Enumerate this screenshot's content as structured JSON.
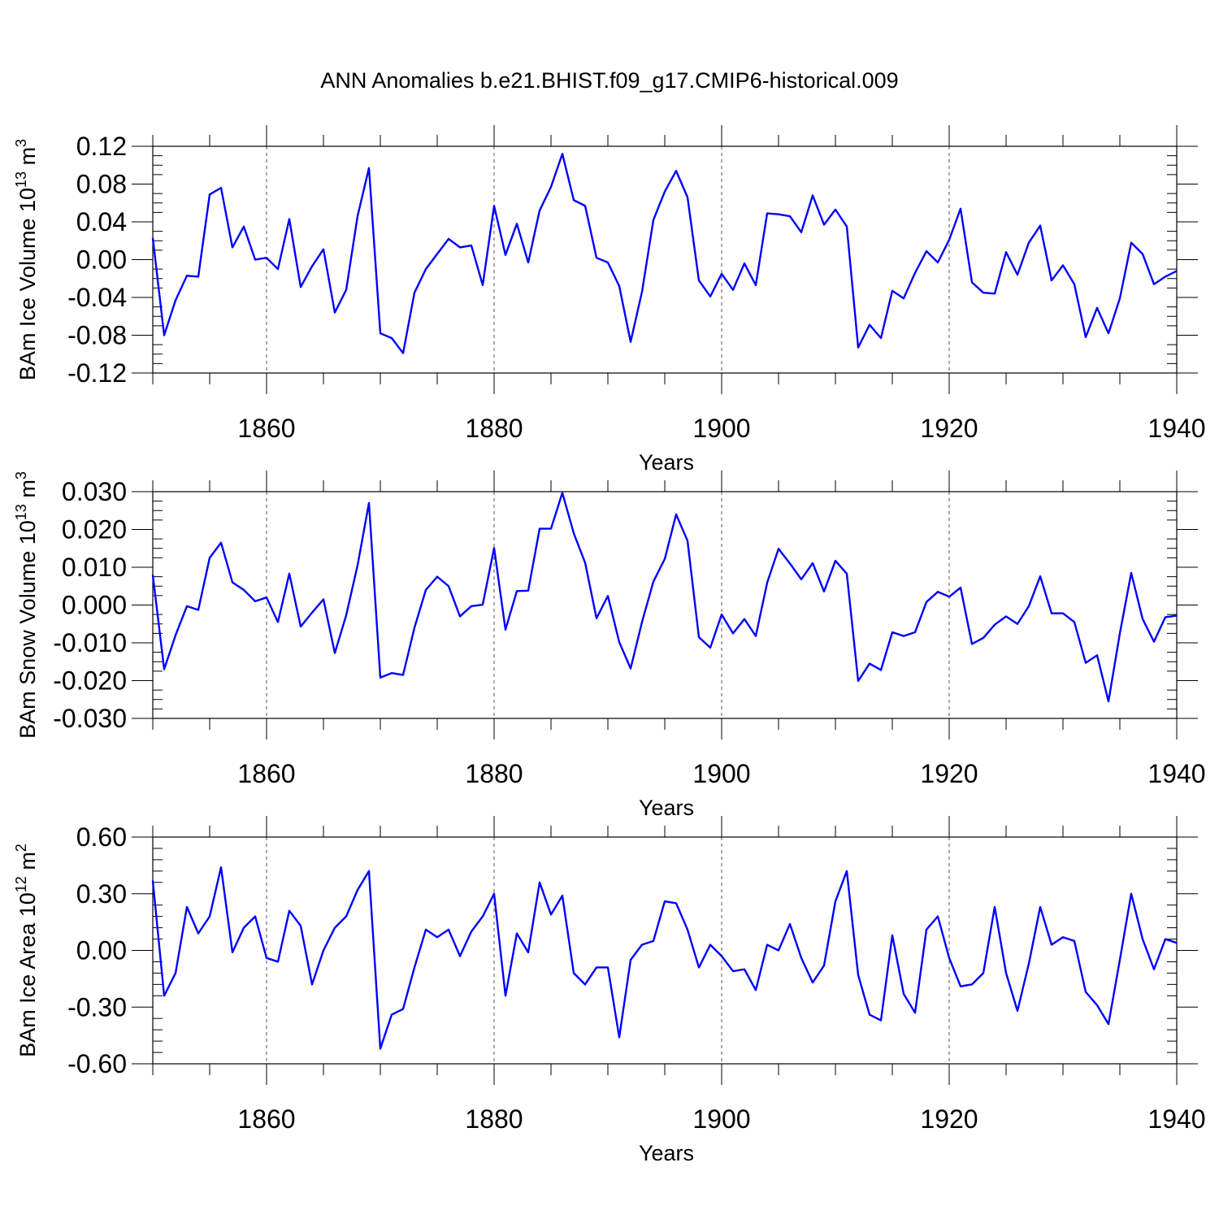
{
  "title": "ANN Anomalies b.e21.BHIST.f09_g17.CMIP6-historical.009",
  "chart_data": [
    {
      "type": "line",
      "xlabel": "Years",
      "ylabel": "BAm Ice Volume 10",
      "ylabel_exp": "13",
      "ylabel_unit": " m",
      "ylabel_unit_exp": "3",
      "xlim": [
        1850,
        1940
      ],
      "ylim": [
        -0.12,
        0.12
      ],
      "xticks": [
        1860,
        1880,
        1900,
        1920,
        1940
      ],
      "yticks": [
        -0.12,
        -0.08,
        -0.04,
        0.0,
        0.04,
        0.08,
        0.12
      ],
      "ytick_labels": [
        "-0.12",
        "-0.08",
        "-0.04",
        "0.00",
        "0.04",
        "0.08",
        "0.12"
      ],
      "grid_x": true,
      "line_color": "#0000ff",
      "x_start": 1850,
      "values": [
        0.023,
        -0.08,
        -0.043,
        -0.017,
        -0.018,
        0.069,
        0.076,
        0.013,
        0.035,
        0.0,
        0.002,
        -0.01,
        0.043,
        -0.029,
        -0.007,
        0.011,
        -0.056,
        -0.032,
        0.046,
        0.097,
        -0.078,
        -0.083,
        -0.099,
        -0.035,
        -0.01,
        0.006,
        0.022,
        0.013,
        0.015,
        -0.027,
        0.057,
        0.005,
        0.038,
        -0.003,
        0.052,
        0.077,
        0.112,
        0.063,
        0.057,
        0.002,
        -0.003,
        -0.028,
        -0.087,
        -0.034,
        0.042,
        0.072,
        0.094,
        0.066,
        -0.022,
        -0.039,
        -0.015,
        -0.032,
        -0.004,
        -0.027,
        0.049,
        0.048,
        0.046,
        0.029,
        0.068,
        0.037,
        0.053,
        0.035,
        -0.093,
        -0.069,
        -0.083,
        -0.033,
        -0.041,
        -0.014,
        0.009,
        -0.003,
        0.021,
        0.054,
        -0.024,
        -0.035,
        -0.036,
        0.008,
        -0.016,
        0.018,
        0.036,
        -0.022,
        -0.006,
        -0.026,
        -0.082,
        -0.051,
        -0.078,
        -0.041,
        0.018,
        0.006,
        -0.026,
        -0.018,
        -0.012
      ]
    },
    {
      "type": "line",
      "xlabel": "Years",
      "ylabel": "BAm Snow Volume 10",
      "ylabel_exp": "13",
      "ylabel_unit": " m",
      "ylabel_unit_exp": "3",
      "xlim": [
        1850,
        1940
      ],
      "ylim": [
        -0.03,
        0.03
      ],
      "xticks": [
        1860,
        1880,
        1900,
        1920,
        1940
      ],
      "yticks": [
        -0.03,
        -0.02,
        -0.01,
        0.0,
        0.01,
        0.02,
        0.03
      ],
      "ytick_labels": [
        "-0.030",
        "-0.020",
        "-0.010",
        "0.000",
        "0.010",
        "0.020",
        "0.030"
      ],
      "grid_x": true,
      "line_color": "#0000ff",
      "x_start": 1850,
      "values": [
        0.008,
        -0.017,
        -0.008,
        -0.0003,
        -0.0013,
        0.0125,
        0.0165,
        0.006,
        0.004,
        0.001,
        0.002,
        -0.0045,
        0.0083,
        -0.0057,
        -0.002,
        0.0015,
        -0.0127,
        -0.0027,
        0.0105,
        0.027,
        -0.0192,
        -0.018,
        -0.0185,
        -0.006,
        0.004,
        0.0075,
        0.005,
        -0.003,
        -0.0003,
        0.0001,
        0.0151,
        -0.0065,
        0.0037,
        0.0038,
        0.0202,
        0.0202,
        0.0297,
        0.019,
        0.0112,
        -0.0035,
        0.0024,
        -0.0098,
        -0.0168,
        -0.0045,
        0.0062,
        0.0122,
        0.024,
        0.017,
        -0.0085,
        -0.0113,
        -0.0025,
        -0.0075,
        -0.0037,
        -0.0082,
        0.0059,
        0.0149,
        0.011,
        0.0068,
        0.0111,
        0.0036,
        0.0117,
        0.0083,
        -0.0201,
        -0.0155,
        -0.0172,
        -0.0072,
        -0.0082,
        -0.0072,
        0.0008,
        0.0035,
        0.0022,
        0.0046,
        -0.0103,
        -0.0087,
        -0.0052,
        -0.003,
        -0.005,
        -0.0003,
        0.0076,
        -0.0022,
        -0.0022,
        -0.0045,
        -0.0153,
        -0.0133,
        -0.0255,
        -0.0075,
        0.0085,
        -0.0037,
        -0.0097,
        -0.0032,
        -0.0028
      ]
    },
    {
      "type": "line",
      "xlabel": "Years",
      "ylabel": "BAm Ice Area 10",
      "ylabel_exp": "12",
      "ylabel_unit": " m",
      "ylabel_unit_exp": "2",
      "xlim": [
        1850,
        1940
      ],
      "ylim": [
        -0.6,
        0.6
      ],
      "xticks": [
        1860,
        1880,
        1900,
        1920,
        1940
      ],
      "yticks": [
        -0.6,
        -0.3,
        0.0,
        0.3,
        0.6
      ],
      "ytick_labels": [
        "-0.60",
        "-0.30",
        "0.00",
        "0.30",
        "0.60"
      ],
      "grid_x": true,
      "line_color": "#0000ff",
      "x_start": 1850,
      "values": [
        0.37,
        -0.24,
        -0.12,
        0.23,
        0.09,
        0.18,
        0.44,
        -0.01,
        0.12,
        0.18,
        -0.04,
        -0.06,
        0.21,
        0.13,
        -0.18,
        0.0,
        0.12,
        0.18,
        0.32,
        0.42,
        -0.52,
        -0.34,
        -0.31,
        -0.09,
        0.11,
        0.07,
        0.11,
        -0.03,
        0.1,
        0.18,
        0.3,
        -0.24,
        0.09,
        -0.01,
        0.36,
        0.19,
        0.29,
        -0.12,
        -0.18,
        -0.09,
        -0.09,
        -0.46,
        -0.05,
        0.03,
        0.05,
        0.26,
        0.25,
        0.11,
        -0.09,
        0.03,
        -0.03,
        -0.11,
        -0.1,
        -0.21,
        0.03,
        0.0,
        0.14,
        -0.04,
        -0.17,
        -0.08,
        0.26,
        0.42,
        -0.13,
        -0.34,
        -0.37,
        0.08,
        -0.23,
        -0.33,
        0.11,
        0.18,
        -0.04,
        -0.19,
        -0.18,
        -0.12,
        0.23,
        -0.12,
        -0.32,
        -0.07,
        0.23,
        0.03,
        0.07,
        0.05,
        -0.22,
        -0.29,
        -0.39,
        -0.05,
        0.3,
        0.06,
        -0.1,
        0.06,
        0.04
      ]
    }
  ]
}
